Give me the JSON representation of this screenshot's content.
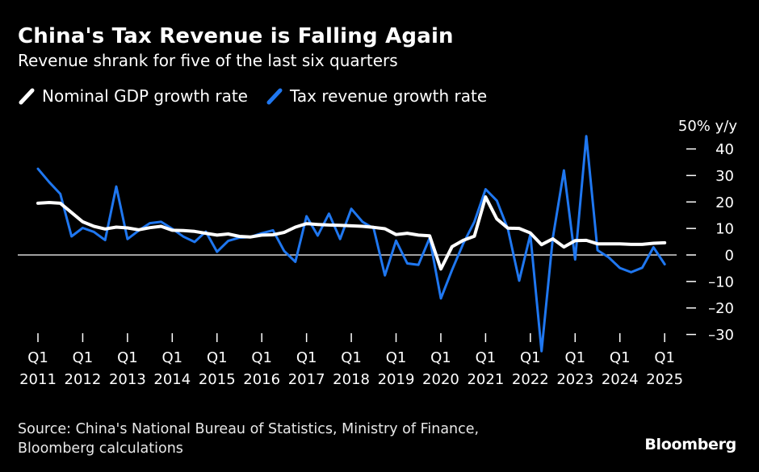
{
  "title": "China's Tax Revenue is Falling Again",
  "subtitle": "Revenue shrank for five of the last six quarters",
  "source": [
    "Source: China's National Bureau of Statistics, Ministry of Finance,",
    "Bloomberg calculations"
  ],
  "logo": "Bloomberg",
  "colors": {
    "background": "#000000",
    "gdp": "#ffffff",
    "tax": "#1f77f0",
    "zero_line": "#ffffff"
  },
  "chart_data": {
    "type": "line",
    "unit_label": "50% y/y",
    "grid": false,
    "legend_placement": "top-left",
    "ylim": [
      -35,
      50
    ],
    "y_ticks": [
      -30,
      -20,
      -10,
      0,
      10,
      20,
      30,
      40
    ],
    "y_tick_labels": [
      "–30",
      "–20",
      "–10",
      "0",
      "10",
      "20",
      "30",
      "40"
    ],
    "x_start": 2011,
    "x_tick_labels": [
      [
        "Q1",
        "2011"
      ],
      [
        "Q1",
        "2012"
      ],
      [
        "Q1",
        "2013"
      ],
      [
        "Q1",
        "2014"
      ],
      [
        "Q1",
        "2015"
      ],
      [
        "Q1",
        "2016"
      ],
      [
        "Q1",
        "2017"
      ],
      [
        "Q1",
        "2018"
      ],
      [
        "Q1",
        "2019"
      ],
      [
        "Q1",
        "2020"
      ],
      [
        "Q1",
        "2021"
      ],
      [
        "Q1",
        "2022"
      ],
      [
        "Q1",
        "2023"
      ],
      [
        "Q1",
        "2024"
      ],
      [
        "Q1",
        "2025"
      ]
    ],
    "series": [
      {
        "name": "Nominal GDP growth rate",
        "color": "#ffffff",
        "values": [
          19.5,
          19.8,
          19.5,
          16.0,
          12.5,
          10.8,
          9.8,
          10.5,
          10.2,
          9.5,
          10.3,
          10.8,
          9.3,
          9.2,
          8.9,
          8.2,
          7.5,
          7.9,
          7.0,
          6.8,
          7.5,
          7.6,
          8.5,
          10.5,
          11.8,
          11.5,
          11.3,
          11.2,
          11.0,
          10.8,
          10.4,
          9.9,
          7.7,
          8.2,
          7.5,
          7.2,
          -5.3,
          3.1,
          5.5,
          7.1,
          21.9,
          13.6,
          10.1,
          10.0,
          8.3,
          3.9,
          6.1,
          3.0,
          5.4,
          5.5,
          4.2,
          4.2,
          4.2,
          4.0,
          4.0,
          4.4,
          4.6
        ],
        "x": [
          "2011 Q1",
          "2011 Q2",
          "2011 Q3",
          "2011 Q4",
          "2012 Q1",
          "2012 Q2",
          "2012 Q3",
          "2012 Q4",
          "2013 Q1",
          "2013 Q2",
          "2013 Q3",
          "2013 Q4",
          "2014 Q1",
          "2014 Q2",
          "2014 Q3",
          "2014 Q4",
          "2015 Q1",
          "2015 Q2",
          "2015 Q3",
          "2015 Q4",
          "2016 Q1",
          "2016 Q2",
          "2016 Q3",
          "2016 Q4",
          "2017 Q1",
          "2017 Q2",
          "2017 Q3",
          "2017 Q4",
          "2018 Q1",
          "2018 Q2",
          "2018 Q3",
          "2018 Q4",
          "2019 Q1",
          "2019 Q2",
          "2019 Q3",
          "2019 Q4",
          "2020 Q1",
          "2020 Q2",
          "2020 Q3",
          "2020 Q4",
          "2021 Q1",
          "2021 Q2",
          "2021 Q3",
          "2021 Q4",
          "2022 Q1",
          "2022 Q2",
          "2022 Q3",
          "2022 Q4",
          "2023 Q1",
          "2023 Q2",
          "2023 Q3",
          "2023 Q4",
          "2024 Q1",
          "2024 Q2",
          "2024 Q3",
          "2024 Q4",
          "2025 Q1"
        ]
      },
      {
        "name": "Tax revenue growth rate",
        "color": "#1f77f0",
        "values": [
          32.5,
          27.5,
          23.0,
          7.0,
          10.2,
          8.7,
          5.6,
          25.8,
          6.0,
          9.2,
          12.0,
          12.5,
          9.9,
          6.9,
          4.9,
          8.8,
          1.2,
          5.3,
          6.5,
          6.8,
          8.2,
          9.3,
          1.5,
          -2.6,
          14.6,
          7.3,
          15.6,
          6.0,
          17.4,
          12.5,
          10.0,
          -7.7,
          5.4,
          -3.2,
          -3.7,
          6.4,
          -16.4,
          -5.7,
          4.3,
          12.5,
          24.8,
          20.5,
          9.7,
          -9.7,
          7.7,
          -36.3,
          6.3,
          31.9,
          -1.7,
          44.8,
          1.8,
          -0.9,
          -4.9,
          -6.5,
          -4.8,
          2.9,
          -3.5
        ],
        "x": [
          "2011 Q1",
          "2011 Q2",
          "2011 Q3",
          "2011 Q4",
          "2012 Q1",
          "2012 Q2",
          "2012 Q3",
          "2012 Q4",
          "2013 Q1",
          "2013 Q2",
          "2013 Q3",
          "2013 Q4",
          "2014 Q1",
          "2014 Q2",
          "2014 Q3",
          "2014 Q4",
          "2015 Q1",
          "2015 Q2",
          "2015 Q3",
          "2015 Q4",
          "2016 Q1",
          "2016 Q2",
          "2016 Q3",
          "2016 Q4",
          "2017 Q1",
          "2017 Q2",
          "2017 Q3",
          "2017 Q4",
          "2018 Q1",
          "2018 Q2",
          "2018 Q3",
          "2018 Q4",
          "2019 Q1",
          "2019 Q2",
          "2019 Q3",
          "2019 Q4",
          "2020 Q1",
          "2020 Q2",
          "2020 Q3",
          "2020 Q4",
          "2021 Q1",
          "2021 Q2",
          "2021 Q3",
          "2021 Q4",
          "2022 Q1",
          "2022 Q2",
          "2022 Q3",
          "2022 Q4",
          "2023 Q1",
          "2023 Q2",
          "2023 Q3",
          "2023 Q4",
          "2024 Q1",
          "2024 Q2",
          "2024 Q3",
          "2024 Q4",
          "2025 Q1"
        ]
      }
    ]
  }
}
